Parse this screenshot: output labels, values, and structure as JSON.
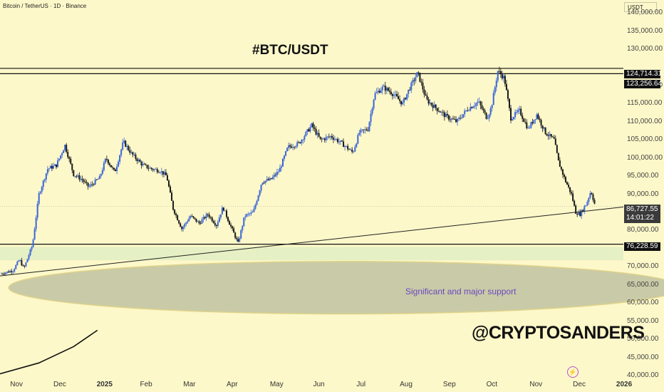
{
  "header": {
    "symbol": "Bitcoin / TetherUS · 1D · Binance",
    "currency": "USDT"
  },
  "annotations": {
    "title": "#BTC/USDT",
    "support_label": "Significant and major support",
    "watermark": "@CRYPTOSANDERS"
  },
  "price_labels": {
    "top_resistance": "124,714.31",
    "resistance": "123,256.64",
    "last_price": "86,727.55",
    "countdown": "14:01:22",
    "support": "76,228.59"
  },
  "colors": {
    "background": "#fdf8c9",
    "candle_up": "#3a66d6",
    "candle_down": "#1a1a1a",
    "support_zone": "#c9caa7",
    "support_text": "#6a48c2",
    "green_band": "#dfeec3"
  },
  "chart_data": {
    "type": "candlestick",
    "title": "#BTC/USDT",
    "interval": "1D",
    "y_ticks": [
      {
        "value": 140000,
        "label": "140,000.00"
      },
      {
        "value": 135000,
        "label": "135,000.00"
      },
      {
        "value": 130000,
        "label": "130,000.00"
      },
      {
        "value": 125000,
        "label": ""
      },
      {
        "value": 120000,
        "label": "120,000.00"
      },
      {
        "value": 115000,
        "label": "115,000.00"
      },
      {
        "value": 110000,
        "label": "110,000.00"
      },
      {
        "value": 105000,
        "label": "105,000.00"
      },
      {
        "value": 100000,
        "label": "100,000.00"
      },
      {
        "value": 95000,
        "label": "95,000.00"
      },
      {
        "value": 90000,
        "label": "90,000.00"
      },
      {
        "value": 85000,
        "label": ""
      },
      {
        "value": 80000,
        "label": "80,000.00"
      },
      {
        "value": 75000,
        "label": ""
      },
      {
        "value": 70000,
        "label": "70,000.00"
      },
      {
        "value": 65000,
        "label": "65,000.00"
      },
      {
        "value": 60000,
        "label": "60,000.00"
      },
      {
        "value": 55000,
        "label": "55,000.00"
      },
      {
        "value": 50000,
        "label": "50,000.00"
      },
      {
        "value": 45000,
        "label": "45,000.00"
      },
      {
        "value": 40000,
        "label": "40,000.00"
      }
    ],
    "x_ticks": [
      {
        "t": 0,
        "label": "Nov",
        "bold": false
      },
      {
        "t": 1,
        "label": "Dec",
        "bold": false
      },
      {
        "t": 2,
        "label": "2025",
        "bold": true
      },
      {
        "t": 3,
        "label": "Feb",
        "bold": false
      },
      {
        "t": 4,
        "label": "Mar",
        "bold": false
      },
      {
        "t": 5,
        "label": "Apr",
        "bold": false
      },
      {
        "t": 6,
        "label": "May",
        "bold": false
      },
      {
        "t": 7,
        "label": "Jun",
        "bold": false
      },
      {
        "t": 8,
        "label": "Jul",
        "bold": false
      },
      {
        "t": 9,
        "label": "Aug",
        "bold": false
      },
      {
        "t": 10,
        "label": "Sep",
        "bold": false
      },
      {
        "t": 11,
        "label": "Oct",
        "bold": false
      },
      {
        "t": 12,
        "label": "Nov",
        "bold": false
      },
      {
        "t": 13,
        "label": "Dec",
        "bold": false
      },
      {
        "t": 14,
        "label": "2026",
        "bold": true
      }
    ],
    "y_range": [
      40000,
      142000
    ],
    "x_range": [
      -0.3,
      14.1
    ],
    "price_path": [
      [
        -0.3,
        68000
      ],
      [
        0.0,
        69000
      ],
      [
        0.15,
        72000
      ],
      [
        0.25,
        69500
      ],
      [
        0.45,
        76000
      ],
      [
        0.6,
        90000
      ],
      [
        0.8,
        97000
      ],
      [
        1.0,
        98000
      ],
      [
        1.2,
        103500
      ],
      [
        1.4,
        95500
      ],
      [
        1.6,
        94000
      ],
      [
        1.75,
        92000
      ],
      [
        2.0,
        94500
      ],
      [
        2.15,
        100000
      ],
      [
        2.35,
        96000
      ],
      [
        2.55,
        104500
      ],
      [
        2.75,
        101000
      ],
      [
        3.0,
        98000
      ],
      [
        3.2,
        97000
      ],
      [
        3.4,
        96500
      ],
      [
        3.55,
        95000
      ],
      [
        3.7,
        86000
      ],
      [
        3.9,
        80500
      ],
      [
        4.1,
        84000
      ],
      [
        4.3,
        82000
      ],
      [
        4.5,
        84500
      ],
      [
        4.7,
        81500
      ],
      [
        4.85,
        86500
      ],
      [
        5.0,
        82000
      ],
      [
        5.2,
        76500
      ],
      [
        5.35,
        84000
      ],
      [
        5.55,
        85000
      ],
      [
        5.75,
        93500
      ],
      [
        5.95,
        94000
      ],
      [
        6.15,
        96500
      ],
      [
        6.35,
        103000
      ],
      [
        6.6,
        104000
      ],
      [
        6.9,
        109000
      ],
      [
        7.1,
        105000
      ],
      [
        7.35,
        106000
      ],
      [
        7.6,
        104000
      ],
      [
        7.85,
        101500
      ],
      [
        8.0,
        107000
      ],
      [
        8.2,
        108000
      ],
      [
        8.35,
        117500
      ],
      [
        8.55,
        119500
      ],
      [
        8.75,
        118000
      ],
      [
        9.0,
        115000
      ],
      [
        9.15,
        119000
      ],
      [
        9.35,
        123500
      ],
      [
        9.55,
        116000
      ],
      [
        9.8,
        113500
      ],
      [
        10.0,
        111500
      ],
      [
        10.25,
        110000
      ],
      [
        10.5,
        113500
      ],
      [
        10.75,
        115500
      ],
      [
        10.95,
        111000
      ],
      [
        11.05,
        114000
      ],
      [
        11.2,
        124000
      ],
      [
        11.35,
        122000
      ],
      [
        11.5,
        111000
      ],
      [
        11.7,
        113000
      ],
      [
        11.9,
        108000
      ],
      [
        12.1,
        112000
      ],
      [
        12.3,
        107000
      ],
      [
        12.5,
        105000
      ],
      [
        12.6,
        99000
      ],
      [
        12.75,
        94000
      ],
      [
        12.9,
        90000
      ],
      [
        13.0,
        85000
      ],
      [
        13.1,
        84500
      ],
      [
        13.25,
        87500
      ],
      [
        13.35,
        91000
      ],
      [
        13.45,
        86700
      ]
    ],
    "horizontal_levels": [
      124714.31,
      123256.64,
      76228.59
    ],
    "last_price": 86727.55,
    "trendline": [
      [
        -0.3,
        67500
      ],
      [
        14.1,
        86500
      ]
    ],
    "curved_line": [
      [
        -0.3,
        40500
      ],
      [
        0.6,
        43500
      ],
      [
        1.4,
        48000
      ],
      [
        1.95,
        52500
      ]
    ],
    "support_zone": {
      "x_from": -0.1,
      "x_to": 14.1,
      "y_from": 57000,
      "y_to": 71500
    },
    "green_band": {
      "y_from": 71800,
      "y_to": 75500
    }
  }
}
